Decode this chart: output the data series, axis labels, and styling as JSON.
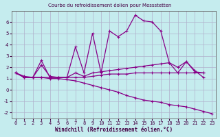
{
  "title": "Courbe du refroidissement éolien pour Messstetten",
  "xlabel": "Windchill (Refroidissement éolien,°C)",
  "background_color": "#c5ecee",
  "grid_color": "#b0b0cc",
  "line_color": "#880088",
  "xlim": [
    -0.5,
    23.5
  ],
  "ylim": [
    -2.5,
    7.0
  ],
  "yticks": [
    -2,
    -1,
    0,
    1,
    2,
    3,
    4,
    5,
    6
  ],
  "xticks": [
    0,
    1,
    2,
    3,
    4,
    5,
    6,
    7,
    8,
    9,
    10,
    11,
    12,
    13,
    14,
    15,
    16,
    17,
    18,
    19,
    20,
    21,
    22,
    23
  ],
  "lines": [
    {
      "x": [
        0,
        1,
        2,
        3,
        4,
        5,
        6,
        7,
        8,
        9,
        10,
        11,
        12,
        13,
        14,
        15,
        16,
        17,
        18,
        19,
        20,
        21,
        22
      ],
      "y": [
        1.5,
        1.1,
        1.1,
        2.6,
        1.1,
        1.1,
        1.1,
        3.8,
        1.5,
        5.0,
        1.5,
        5.2,
        4.7,
        5.2,
        6.6,
        6.1,
        6.0,
        5.2,
        2.4,
        2.0,
        2.5,
        1.7,
        1.1
      ]
    },
    {
      "x": [
        0,
        1,
        2,
        3,
        4,
        5,
        6,
        7,
        8,
        9,
        10,
        11,
        12,
        13,
        14,
        15,
        16,
        17,
        18,
        19,
        20,
        21,
        22
      ],
      "y": [
        1.5,
        1.1,
        1.1,
        2.2,
        1.2,
        1.1,
        1.1,
        1.5,
        1.2,
        1.5,
        1.6,
        1.7,
        1.8,
        1.9,
        2.0,
        2.1,
        2.2,
        2.3,
        2.4,
        1.5,
        2.5,
        1.6,
        1.5
      ]
    },
    {
      "x": [
        0,
        1,
        2,
        3,
        4,
        5,
        6,
        7,
        8,
        9,
        10,
        11,
        12,
        13,
        14,
        15,
        16,
        17,
        18,
        19,
        20,
        21,
        22
      ],
      "y": [
        1.5,
        1.1,
        1.1,
        1.1,
        1.1,
        1.1,
        1.1,
        1.1,
        1.1,
        1.2,
        1.3,
        1.4,
        1.4,
        1.4,
        1.5,
        1.5,
        1.5,
        1.5,
        1.5,
        1.5,
        1.5,
        1.5,
        1.5
      ]
    },
    {
      "x": [
        0,
        1,
        2,
        3,
        4,
        5,
        6,
        7,
        8,
        9,
        10,
        11,
        12,
        13,
        14,
        15,
        16,
        17,
        18,
        19,
        20,
        21,
        22,
        23
      ],
      "y": [
        1.5,
        1.2,
        1.1,
        1.1,
        1.0,
        1.0,
        0.9,
        0.8,
        0.6,
        0.4,
        0.2,
        0.0,
        -0.2,
        -0.5,
        -0.7,
        -0.9,
        -1.0,
        -1.1,
        -1.3,
        -1.4,
        -1.5,
        -1.7,
        -1.9,
        -2.1
      ]
    }
  ]
}
